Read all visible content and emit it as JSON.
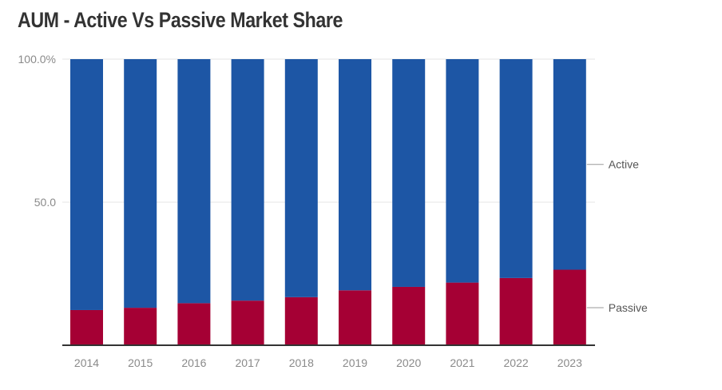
{
  "chart_data": {
    "type": "bar",
    "stacked": true,
    "title": "AUM - Active Vs Passive Market Share",
    "categories": [
      "2014",
      "2015",
      "2016",
      "2017",
      "2018",
      "2019",
      "2020",
      "2021",
      "2022",
      "2023"
    ],
    "series": [
      {
        "name": "Passive",
        "color": "#a50034",
        "values": [
          12.3,
          13.1,
          14.7,
          15.6,
          16.8,
          19.2,
          20.4,
          21.9,
          23.5,
          26.4
        ]
      },
      {
        "name": "Active",
        "color": "#1d56a5",
        "values": [
          87.7,
          86.9,
          85.3,
          84.4,
          83.2,
          80.8,
          79.6,
          78.1,
          76.5,
          73.6
        ]
      }
    ],
    "ylim": [
      0,
      100
    ],
    "yticks": [
      {
        "value": 50,
        "label": "50.0"
      },
      {
        "value": 100,
        "label": "100.0%"
      }
    ],
    "xlabel": "",
    "ylabel": "",
    "grid": true,
    "legend_placement": "right, inline labels"
  }
}
